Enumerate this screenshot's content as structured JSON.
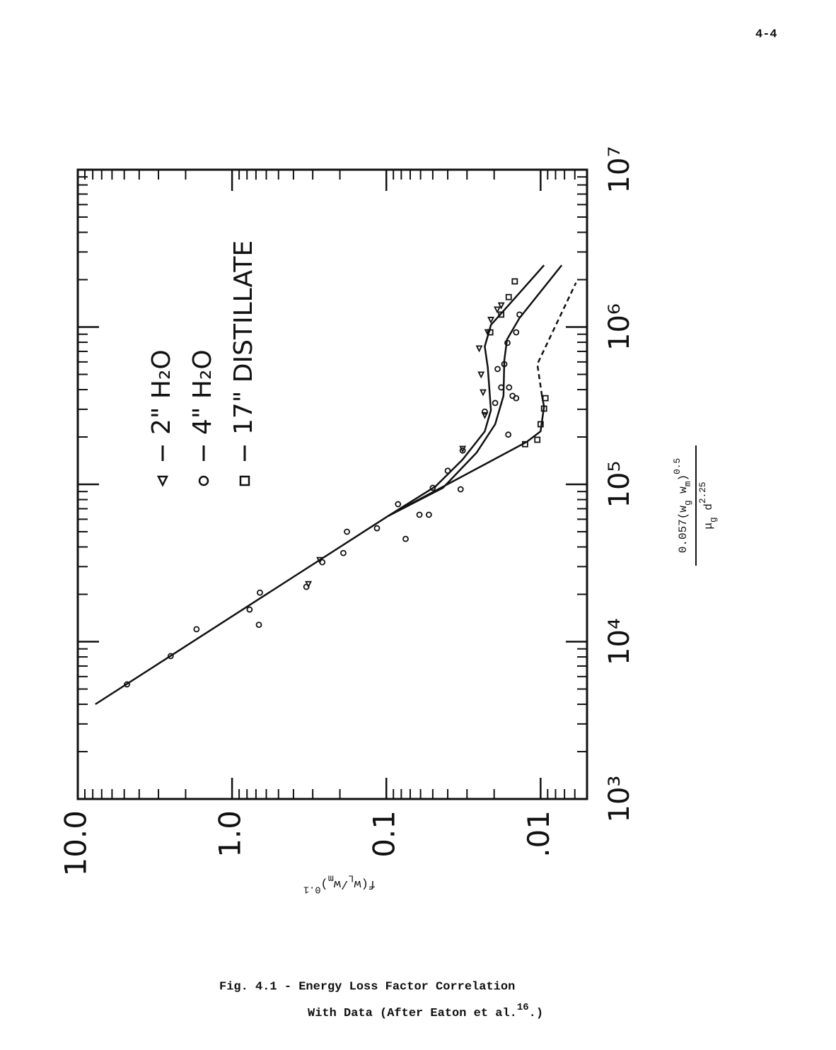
{
  "page_number": "4-4",
  "chart_data": {
    "type": "scatter",
    "log_x": true,
    "log_y": true,
    "xlim": [
      1000,
      10000000
    ],
    "ylim": [
      0.005,
      10
    ],
    "xticks": [
      {
        "value": 1000,
        "label": "10³"
      },
      {
        "value": 10000,
        "label": "10⁴"
      },
      {
        "value": 100000,
        "label": "10⁵"
      },
      {
        "value": 1000000,
        "label": "10⁶"
      },
      {
        "value": 10000000,
        "label": "10⁷"
      }
    ],
    "yticks": [
      {
        "value": 10,
        "label": "10.0"
      },
      {
        "value": 1,
        "label": "1.0"
      },
      {
        "value": 0.1,
        "label": "0.1"
      },
      {
        "value": 0.01,
        "label": ".01"
      }
    ],
    "xlabel": {
      "numerator": [
        {
          "text": "0.057(w"
        },
        {
          "text": "g",
          "shift": "sub"
        },
        {
          "text": " w"
        },
        {
          "text": "m",
          "shift": "sub"
        },
        {
          "text": ")"
        },
        {
          "text": "0.5",
          "shift": "sup"
        }
      ],
      "denominator": [
        {
          "text": "μ"
        },
        {
          "text": "g",
          "shift": "sub"
        },
        {
          "text": " d"
        },
        {
          "text": "2.25",
          "shift": "sup"
        }
      ]
    },
    "ylabel": [
      {
        "text": "f(w"
      },
      {
        "text": "L",
        "shift": "sub"
      },
      {
        "text": "/w"
      },
      {
        "text": "m",
        "shift": "sub"
      },
      {
        "text": ")"
      },
      {
        "text": "0.1",
        "shift": "sup"
      }
    ],
    "series": [
      {
        "name": "2\" H₂O",
        "marker": "triangle",
        "color": "#111111",
        "x": [
          33000,
          23200,
          168000,
          275000,
          384000,
          498000,
          730000,
          925000,
          1110000,
          1290000,
          1370000
        ],
        "values": [
          0.27,
          0.32,
          0.032,
          0.023,
          0.0236,
          0.0243,
          0.025,
          0.022,
          0.021,
          0.0191,
          0.018
        ]
      },
      {
        "name": "4\" H₂O",
        "marker": "circle",
        "color": "#111111",
        "x": [
          5350,
          8100,
          12000,
          16000,
          20500,
          12800,
          22300,
          32000,
          36600,
          50000,
          52600,
          74800,
          45000,
          64100,
          64100,
          95000,
          122000,
          164000,
          93000,
          290000,
          329000,
          413000,
          541000,
          581000,
          413000,
          365000,
          207000,
          353000,
          793000,
          925000,
          1200000
        ],
        "values": [
          4.8,
          2.5,
          1.7,
          0.77,
          0.66,
          0.67,
          0.33,
          0.26,
          0.19,
          0.18,
          0.115,
          0.084,
          0.075,
          0.061,
          0.053,
          0.05,
          0.04,
          0.032,
          0.033,
          0.023,
          0.0197,
          0.018,
          0.019,
          0.0172,
          0.016,
          0.0152,
          0.0162,
          0.0144,
          0.0164,
          0.0144,
          0.0137
        ]
      },
      {
        "name": "17\" DISTILLATE",
        "marker": "square",
        "color": "#111111",
        "x": [
          180000,
          192000,
          241000,
          303000,
          353000,
          925000,
          1200000,
          1550000,
          1950000
        ],
        "values": [
          0.0126,
          0.0105,
          0.01,
          0.0095,
          0.0093,
          0.0212,
          0.018,
          0.0161,
          0.0147
        ]
      }
    ],
    "curves": [
      {
        "dashed": false,
        "x": [
          4000,
          63000
        ],
        "values": [
          7.7,
          0.097
        ]
      },
      {
        "dashed": false,
        "x": [
          63000,
          97000,
          144000,
          217000,
          296000,
          552000,
          752000,
          1030000,
          1470000,
          2470000
        ],
        "values": [
          0.097,
          0.048,
          0.032,
          0.023,
          0.021,
          0.022,
          0.023,
          0.021,
          0.0152,
          0.0095
        ]
      },
      {
        "dashed": false,
        "x": [
          63000,
          95000,
          159000,
          241000,
          365000,
          612000,
          834000,
          1140000,
          2470000
        ],
        "values": [
          0.097,
          0.043,
          0.026,
          0.0197,
          0.0174,
          0.0172,
          0.0165,
          0.0137,
          0.0073
        ]
      },
      {
        "dashed": false,
        "x": [
          63000,
          186000,
          217000,
          312000,
          365000
        ],
        "values": [
          0.097,
          0.0123,
          0.01,
          0.0095,
          0.0098
        ]
      },
      {
        "dashed": true,
        "x": [
          365000,
          581000,
          1910000
        ],
        "values": [
          0.0098,
          0.0105,
          0.0059
        ]
      }
    ]
  },
  "caption": {
    "line1": "Fig. 4.1 - Energy Loss Factor Correlation",
    "line2": "With Data (After Eaton et al.",
    "ref": "16",
    "line2_end": ".)"
  }
}
